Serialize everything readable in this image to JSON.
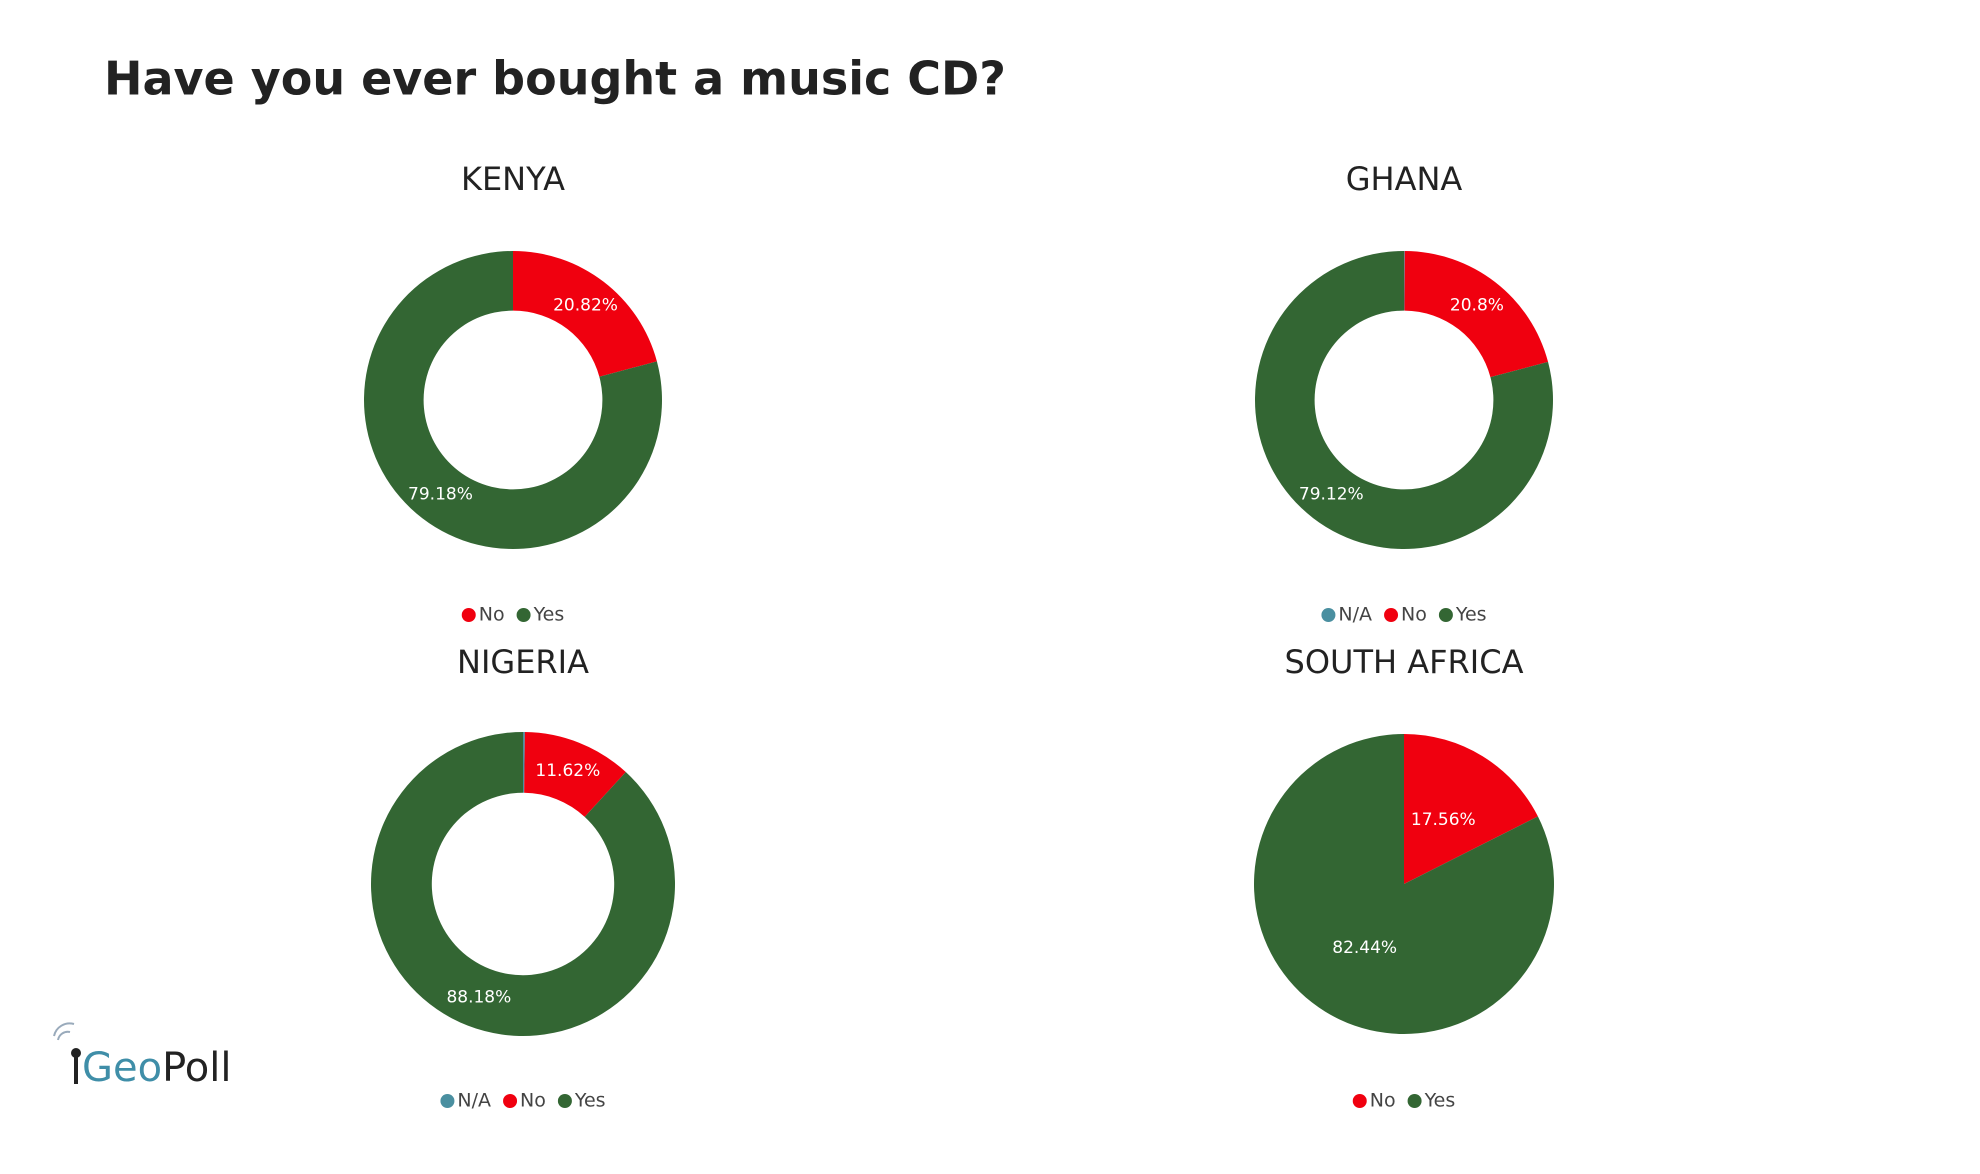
{
  "title": "Have you ever bought a music CD?",
  "logo": [
    "Geo",
    "Poll"
  ],
  "chart_data": [
    {
      "type": "donut",
      "title": "KENYA",
      "categories": [
        "No",
        "Yes"
      ],
      "values": [
        20.82,
        79.18
      ],
      "value_labels": [
        "20.82%",
        "79.18%"
      ],
      "colors": [
        "#f0000f",
        "#336633"
      ]
    },
    {
      "type": "donut",
      "title": "GHANA",
      "categories": [
        "N/A",
        "No",
        "Yes"
      ],
      "values": [
        0.08,
        20.8,
        79.12
      ],
      "value_labels": [
        null,
        "20.8%",
        "79.12%"
      ],
      "colors": [
        "#4a8fa0",
        "#f0000f",
        "#336633"
      ]
    },
    {
      "type": "donut",
      "title": "NIGERIA",
      "categories": [
        "N/A",
        "No",
        "Yes"
      ],
      "values": [
        0.2,
        11.62,
        88.18
      ],
      "value_labels": [
        null,
        "11.62%",
        "88.18%"
      ],
      "colors": [
        "#4a8fa0",
        "#f0000f",
        "#336633"
      ]
    },
    {
      "type": "pie",
      "title": "SOUTH AFRICA",
      "categories": [
        "No",
        "Yes"
      ],
      "values": [
        17.56,
        82.44
      ],
      "value_labels": [
        "17.56%",
        "82.44%"
      ],
      "colors": [
        "#f0000f",
        "#336633"
      ]
    }
  ]
}
